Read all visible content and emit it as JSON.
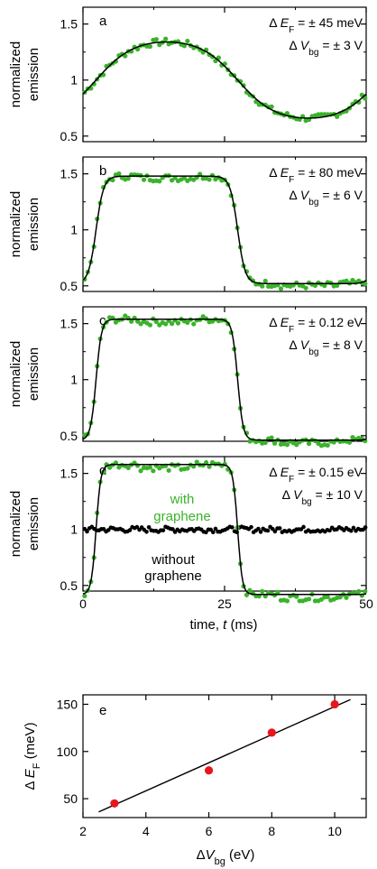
{
  "colors": {
    "green": "#3ab32a",
    "black": "#000000",
    "red": "#e8161b"
  },
  "emission_panels": [
    {
      "letter": "a",
      "dEF_value": "= ± 45 meV",
      "dV_value": "= ± 3 V",
      "amplitude": 0.34,
      "shape": 0.0
    },
    {
      "letter": "b",
      "dEF_value": "= ± 80 meV",
      "dV_value": "= ± 6 V",
      "amplitude": 0.48,
      "shape": 0.55
    },
    {
      "letter": "c",
      "dEF_value": "= ± 0.12 eV",
      "dV_value": "= ± 8 V",
      "amplitude": 0.54,
      "shape": 0.8
    },
    {
      "letter": "d",
      "dEF_value": "= ± 0.15 eV",
      "dV_value": "= ± 10 V",
      "amplitude": 0.58,
      "shape": 0.95,
      "with_label": [
        "with",
        "graphene"
      ],
      "without_label": [
        "without",
        "graphene"
      ]
    }
  ],
  "emission_axes": {
    "ylabel": [
      "normalized",
      "emission"
    ],
    "yticks": [
      "0.5",
      "1",
      "1.5"
    ],
    "ylim": [
      0.45,
      1.65
    ],
    "xlim": [
      0,
      50
    ],
    "xticks": [
      "0",
      "25",
      "50"
    ],
    "xlabel": "time,",
    "xlabel_var": "t",
    "xlabel_unit": "(ms)",
    "period_ms": 50
  },
  "annotation_symbols": {
    "delta": "Δ",
    "EF_main": "E",
    "EF_sub": "F",
    "V_main": "V",
    "V_sub": "bg"
  },
  "chart_data": {
    "type": "scatter",
    "title": "",
    "xlabel": "ΔV_bg (eV)",
    "ylabel": "ΔE_F (meV)",
    "xlim": [
      2,
      11
    ],
    "ylim": [
      30,
      160
    ],
    "xticks": [
      "2",
      "4",
      "6",
      "8",
      "10"
    ],
    "yticks": [
      "50",
      "100",
      "150"
    ],
    "series": [
      {
        "x": [
          3,
          6,
          8,
          10
        ],
        "y": [
          45,
          80,
          120,
          150
        ]
      }
    ],
    "fit_line": {
      "x": [
        2.5,
        10.5
      ],
      "y": [
        36,
        155
      ]
    },
    "panel_letter": "e",
    "ylabel_parts": {
      "delta": "Δ",
      "main": "E",
      "sub": "F",
      "unit": "(meV)"
    },
    "xlabel_parts": {
      "delta": "Δ",
      "main": "V",
      "sub": "bg",
      "unit": "(eV)"
    }
  }
}
